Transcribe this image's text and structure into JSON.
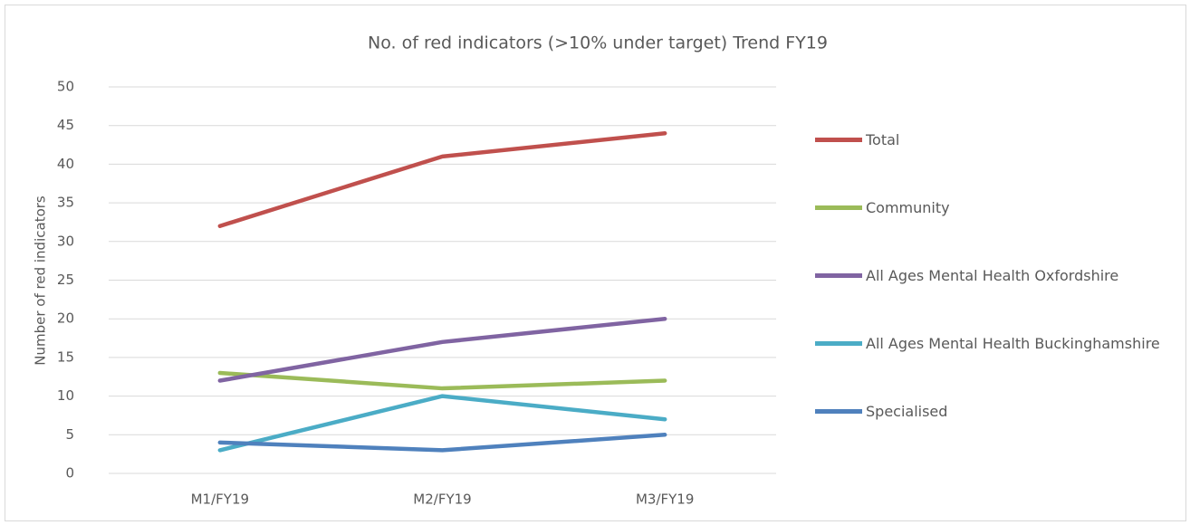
{
  "chart_data": {
    "type": "line",
    "title": "No. of red indicators (>10% under target) Trend FY19",
    "y_label": "Number of red indicators",
    "categories": [
      "M1/FY19",
      "M2/FY19",
      "M3/FY19"
    ],
    "series": [
      {
        "name": "Total",
        "color": "#c0504d",
        "values": [
          32,
          41,
          44
        ]
      },
      {
        "name": "Community",
        "color": "#9bbb59",
        "values": [
          13,
          11,
          12
        ]
      },
      {
        "name": "All Ages Mental Health Oxfordshire",
        "color": "#8064a2",
        "values": [
          12,
          17,
          20
        ]
      },
      {
        "name": "All Ages Mental Health Buckinghamshire",
        "color": "#4bacc6",
        "values": [
          3,
          10,
          7
        ]
      },
      {
        "name": "Specialised",
        "color": "#4f81bd",
        "values": [
          4,
          3,
          5
        ]
      }
    ],
    "ylim": [
      0,
      50
    ],
    "yticks": [
      0,
      5,
      10,
      15,
      20,
      25,
      30,
      35,
      40,
      45,
      50
    ],
    "grid": true,
    "legend": "right"
  }
}
